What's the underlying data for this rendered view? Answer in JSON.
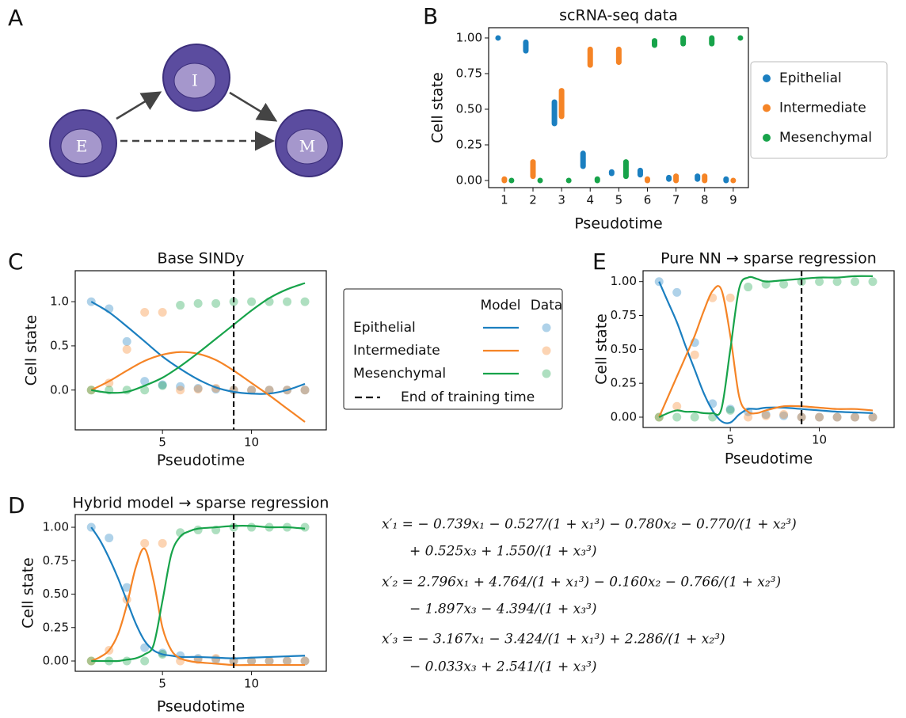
{
  "panels": [
    "A",
    "B",
    "C",
    "D",
    "E"
  ],
  "diagram": {
    "nodes": [
      {
        "label": "E"
      },
      {
        "label": "I"
      },
      {
        "label": "M"
      }
    ]
  },
  "legend": {
    "headers": [
      "Model",
      "Data"
    ],
    "entries": [
      "Epithelial",
      "Intermediate",
      "Mesenchymal"
    ],
    "training_label": "End of training time"
  },
  "equations": [
    "x′₁ = − 0.739x₁ − 0.527/(1 + x₁³) − 0.780x₂ − 0.770/(1 + x₂³)",
    "+ 0.525x₃ + 1.550/(1 + x₃³)",
    "x′₂ = 2.796x₁ + 4.764/(1 + x₁³) − 0.160x₂ − 0.766/(1 + x₂³)",
    "− 1.897x₃ − 4.394/(1 + x₃³)",
    "x′₃ = − 3.167x₁ − 3.424/(1 + x₁³) + 2.286/(1 + x₂³)",
    "− 0.033x₃ + 2.541/(1 + x₃³)"
  ],
  "chart_data": [
    {
      "type": "scatter",
      "title": "scRNA-seq data",
      "x_label": "Pseudotime",
      "y_label": "Cell state",
      "xlim": [
        0.45,
        9.53
      ],
      "ylim": [
        -0.05,
        1.072
      ],
      "xticks": [
        1,
        2,
        3,
        4,
        5,
        6,
        7,
        8,
        9
      ],
      "yticks": [
        {
          "value": 0,
          "label": "0.00"
        },
        {
          "value": 0.25,
          "label": "0.25"
        },
        {
          "value": 0.5,
          "label": "0.50"
        },
        {
          "value": 0.75,
          "label": "0.75"
        },
        {
          "value": 1,
          "label": "1.00"
        }
      ],
      "legend_position": "right",
      "series": [
        {
          "name": "Epithelial",
          "color": "#1b7fc0",
          "x": [
            0.78,
            1.75,
            2.75,
            3.75,
            4.75,
            5.75,
            6.75,
            7.75,
            8.75
          ],
          "low": [
            1.0,
            0.91,
            0.4,
            0.1,
            0.05,
            0.04,
            0.01,
            0.01,
            0.0
          ],
          "high": [
            1.0,
            0.97,
            0.55,
            0.19,
            0.06,
            0.07,
            0.02,
            0.03,
            0.01
          ]
        },
        {
          "name": "Intermediate",
          "color": "#f58426",
          "x": [
            1,
            2,
            3,
            4,
            5,
            6,
            7,
            8,
            9
          ],
          "low": [
            0.0,
            0.03,
            0.45,
            0.81,
            0.83,
            0.0,
            0.0,
            0.0,
            0.0
          ],
          "high": [
            0.01,
            0.13,
            0.63,
            0.92,
            0.92,
            0.01,
            0.03,
            0.03,
            0.0
          ]
        },
        {
          "name": "Mesenchymal",
          "color": "#17a34a",
          "x": [
            1.25,
            2.25,
            3.25,
            4.25,
            5.25,
            6.25,
            7.25,
            8.25,
            9.25
          ],
          "low": [
            0.0,
            0.0,
            0.0,
            0.0,
            0.03,
            0.95,
            0.96,
            0.96,
            1.0
          ],
          "high": [
            0.0,
            0.0,
            0.0,
            0.01,
            0.13,
            0.98,
            1.0,
            1.0,
            1.0
          ]
        }
      ]
    },
    {
      "type": "line",
      "title": "Base SINDy",
      "x_label": "Pseudotime",
      "y_label": "Cell state",
      "xlim": [
        0.1,
        14.2
      ],
      "ylim": [
        -0.45,
        1.35
      ],
      "xticks": [
        5,
        10
      ],
      "yticks": [
        {
          "value": 0,
          "label": "0.0"
        },
        {
          "value": 0.5,
          "label": "0.5"
        },
        {
          "value": 1,
          "label": "1.0"
        }
      ],
      "training_end": 9,
      "x": [
        1,
        2,
        3,
        4,
        5,
        6,
        7,
        8,
        9,
        10,
        11,
        12,
        13
      ],
      "series": [
        {
          "color": "#1b7fc0",
          "values": [
            1.0,
            0.88,
            0.72,
            0.55,
            0.38,
            0.24,
            0.12,
            0.03,
            -0.02,
            -0.04,
            -0.04,
            0.0,
            0.07
          ]
        },
        {
          "color": "#f58426",
          "values": [
            0.0,
            0.1,
            0.22,
            0.33,
            0.4,
            0.43,
            0.41,
            0.34,
            0.22,
            0.08,
            -0.06,
            -0.21,
            -0.36
          ]
        },
        {
          "color": "#17a34a",
          "values": [
            0.0,
            -0.03,
            -0.02,
            0.05,
            0.14,
            0.27,
            0.42,
            0.58,
            0.74,
            0.9,
            1.04,
            1.14,
            1.21
          ]
        }
      ],
      "data_points": {
        "x": [
          1,
          2,
          3,
          4,
          5,
          6,
          7,
          8,
          9,
          10,
          11,
          12,
          13
        ],
        "series": [
          {
            "color": "#1b7fc0",
            "values": [
              1.0,
              0.92,
              0.55,
              0.1,
              0.06,
              0.04,
              0.02,
              0.01,
              0,
              0,
              0,
              0,
              0
            ]
          },
          {
            "color": "#f58426",
            "values": [
              0,
              0.08,
              0.46,
              0.88,
              0.88,
              0,
              0.01,
              0.02,
              0,
              0,
              0,
              0,
              0
            ]
          },
          {
            "color": "#17a34a",
            "values": [
              0,
              0,
              0,
              0,
              0.05,
              0.96,
              0.98,
              0.98,
              1.0,
              1.0,
              1.0,
              1.0,
              1.0
            ]
          }
        ]
      }
    },
    {
      "type": "line",
      "title": "Hybrid model → sparse regression",
      "x_label": "Pseudotime",
      "y_label": "Cell state",
      "xlim": [
        0.1,
        14.2
      ],
      "ylim": [
        -0.077,
        1.095
      ],
      "xticks": [
        5,
        10
      ],
      "yticks": [
        {
          "value": 0,
          "label": "0.00"
        },
        {
          "value": 0.25,
          "label": "0.25"
        },
        {
          "value": 0.5,
          "label": "0.50"
        },
        {
          "value": 0.75,
          "label": "0.75"
        },
        {
          "value": 1,
          "label": "1.00"
        }
      ],
      "training_end": 9,
      "x": [
        1,
        1.5,
        2,
        2.5,
        3,
        3.5,
        4,
        4.5,
        5,
        5.5,
        6,
        6.5,
        7,
        8,
        9,
        10,
        11,
        12,
        13
      ],
      "series": [
        {
          "color": "#1b7fc0",
          "values": [
            1.0,
            0.9,
            0.77,
            0.62,
            0.45,
            0.28,
            0.15,
            0.08,
            0.05,
            0.04,
            0.03,
            0.03,
            0.03,
            0.025,
            0.02,
            0.025,
            0.03,
            0.035,
            0.04
          ]
        },
        {
          "color": "#f58426",
          "values": [
            0,
            0.03,
            0.08,
            0.2,
            0.42,
            0.7,
            0.84,
            0.6,
            0.25,
            0.08,
            0.02,
            0.0,
            -0.01,
            -0.02,
            -0.03,
            -0.03,
            -0.03,
            -0.03,
            -0.03
          ]
        },
        {
          "color": "#17a34a",
          "values": [
            0,
            0,
            0,
            0,
            0.01,
            0.02,
            0.05,
            0.12,
            0.45,
            0.8,
            0.93,
            0.97,
            0.99,
            1.0,
            1.01,
            1.01,
            1.0,
            1.0,
            0.99
          ]
        }
      ],
      "data_points": {
        "x": [
          1,
          2,
          3,
          4,
          5,
          6,
          7,
          8,
          9,
          10,
          11,
          12,
          13
        ],
        "series": [
          {
            "color": "#1b7fc0",
            "values": [
              1.0,
              0.92,
              0.55,
              0.1,
              0.06,
              0.04,
              0.02,
              0.01,
              0,
              0,
              0,
              0,
              0
            ]
          },
          {
            "color": "#f58426",
            "values": [
              0,
              0.08,
              0.46,
              0.88,
              0.88,
              0,
              0.01,
              0.02,
              0,
              0,
              0,
              0,
              0
            ]
          },
          {
            "color": "#17a34a",
            "values": [
              0,
              0,
              0,
              0,
              0.05,
              0.96,
              0.98,
              0.98,
              1.0,
              1.0,
              1.0,
              1.0,
              1.0
            ]
          }
        ]
      }
    },
    {
      "type": "line",
      "title": "Pure NN → sparse regression",
      "x_label": "Pseudotime",
      "y_label": "Cell state",
      "xlim": [
        0.1,
        14.2
      ],
      "ylim": [
        -0.076,
        1.08
      ],
      "xticks": [
        5,
        10
      ],
      "yticks": [
        {
          "value": 0,
          "label": "0.00"
        },
        {
          "value": 0.25,
          "label": "0.25"
        },
        {
          "value": 0.5,
          "label": "0.50"
        },
        {
          "value": 0.75,
          "label": "0.75"
        },
        {
          "value": 1,
          "label": "1.00"
        }
      ],
      "training_end": 9,
      "x": [
        1,
        1.5,
        2,
        2.5,
        3,
        3.5,
        4,
        4.5,
        5,
        5.5,
        6,
        6.5,
        7,
        8,
        9,
        10,
        11,
        12,
        13
      ],
      "series": [
        {
          "color": "#1b7fc0",
          "values": [
            1.0,
            0.85,
            0.7,
            0.52,
            0.35,
            0.18,
            0.05,
            -0.03,
            -0.04,
            0.02,
            0.06,
            0.06,
            0.07,
            0.07,
            0.06,
            0.05,
            0.04,
            0.035,
            0.03
          ]
        },
        {
          "color": "#f58426",
          "values": [
            0,
            0.15,
            0.3,
            0.45,
            0.6,
            0.78,
            0.93,
            0.94,
            0.6,
            0.15,
            0.04,
            0.03,
            0.05,
            0.08,
            0.08,
            0.07,
            0.06,
            0.06,
            0.05
          ]
        },
        {
          "color": "#17a34a",
          "values": [
            0,
            0.03,
            0.05,
            0.04,
            0.04,
            0.03,
            0.03,
            0.06,
            0.5,
            0.95,
            1.03,
            1.02,
            1.0,
            1.01,
            1.02,
            1.03,
            1.03,
            1.04,
            1.04
          ]
        }
      ],
      "data_points": {
        "x": [
          1,
          2,
          3,
          4,
          5,
          6,
          7,
          8,
          9,
          10,
          11,
          12,
          13
        ],
        "series": [
          {
            "color": "#1b7fc0",
            "values": [
              1.0,
              0.92,
              0.55,
              0.1,
              0.06,
              0.04,
              0.02,
              0.01,
              0,
              0,
              0,
              0,
              0
            ]
          },
          {
            "color": "#f58426",
            "values": [
              0,
              0.08,
              0.46,
              0.88,
              0.88,
              0,
              0.01,
              0.02,
              0,
              0,
              0,
              0,
              0
            ]
          },
          {
            "color": "#17a34a",
            "values": [
              0,
              0,
              0,
              0,
              0.05,
              0.96,
              0.98,
              0.98,
              1.0,
              1.0,
              1.0,
              1.0,
              1.0
            ]
          }
        ]
      }
    }
  ]
}
